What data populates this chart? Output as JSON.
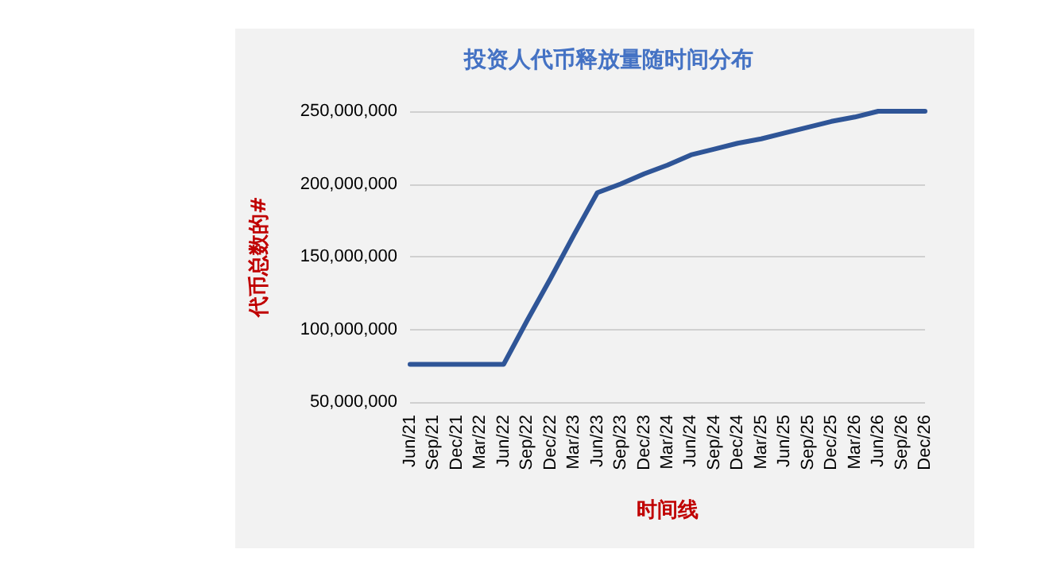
{
  "chart_data": {
    "type": "line",
    "title": "投资人代币释放量随时间分布",
    "xlabel": "时间线",
    "ylabel": "代币总数的#",
    "categories": [
      "Jun/21",
      "Sep/21",
      "Dec/21",
      "Mar/22",
      "Jun/22",
      "Sep/22",
      "Dec/22",
      "Mar/23",
      "Jun/23",
      "Sep/23",
      "Dec/23",
      "Mar/24",
      "Jun/24",
      "Sep/24",
      "Dec/24",
      "Mar/25",
      "Jun/25",
      "Sep/25",
      "Dec/25",
      "Mar/26",
      "Jun/26",
      "Sep/26",
      "Dec/26"
    ],
    "series": [
      {
        "color": "#2f5597",
        "values": [
          76000000,
          76000000,
          76000000,
          76000000,
          76000000,
          106000000,
          135000000,
          165000000,
          194000000,
          200000000,
          207000000,
          213000000,
          220000000,
          224000000,
          228000000,
          231000000,
          235000000,
          239000000,
          243000000,
          246000000,
          250000000,
          250000000,
          250000000
        ]
      }
    ],
    "ylim": [
      50000000,
      250000000
    ],
    "yticks": [
      {
        "value": 50000000,
        "label": "50,000,000"
      },
      {
        "value": 100000000,
        "label": "100,000,000"
      },
      {
        "value": 150000000,
        "label": "150,000,000"
      },
      {
        "value": 200000000,
        "label": "200,000,000"
      },
      {
        "value": 250000000,
        "label": "250,000,000"
      }
    ],
    "grid": "y",
    "marker": "none",
    "line_style": "solid"
  }
}
